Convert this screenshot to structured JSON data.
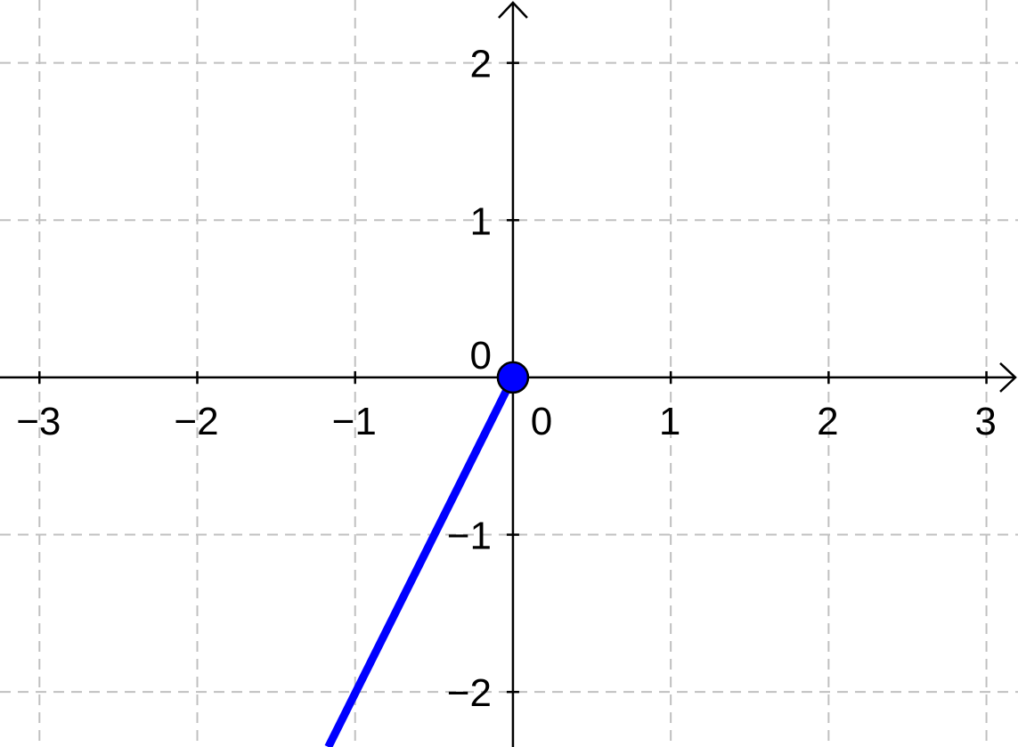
{
  "chart_data": {
    "type": "line",
    "grid": true,
    "xlim": [
      -3.25,
      3.2
    ],
    "ylim": [
      -2.35,
      2.4
    ],
    "x_ticks": [
      {
        "value": -3,
        "label": "−3"
      },
      {
        "value": -2,
        "label": "−2"
      },
      {
        "value": -1,
        "label": "−1"
      },
      {
        "value": 0,
        "label": "0"
      },
      {
        "value": 1,
        "label": "1"
      },
      {
        "value": 2,
        "label": "2"
      },
      {
        "value": 3,
        "label": "3"
      }
    ],
    "y_ticks": [
      {
        "value": -2,
        "label": "−2"
      },
      {
        "value": -1,
        "label": "−1"
      },
      {
        "value": 0,
        "label": "0"
      },
      {
        "value": 1,
        "label": "1"
      },
      {
        "value": 2,
        "label": "2"
      }
    ],
    "series": [
      {
        "x": [
          0,
          -1.17
        ],
        "y": [
          0,
          -2.35
        ],
        "color": "#0000ff"
      }
    ],
    "points": [
      {
        "x": 0,
        "y": 0,
        "color": "#0000ff"
      }
    ]
  }
}
